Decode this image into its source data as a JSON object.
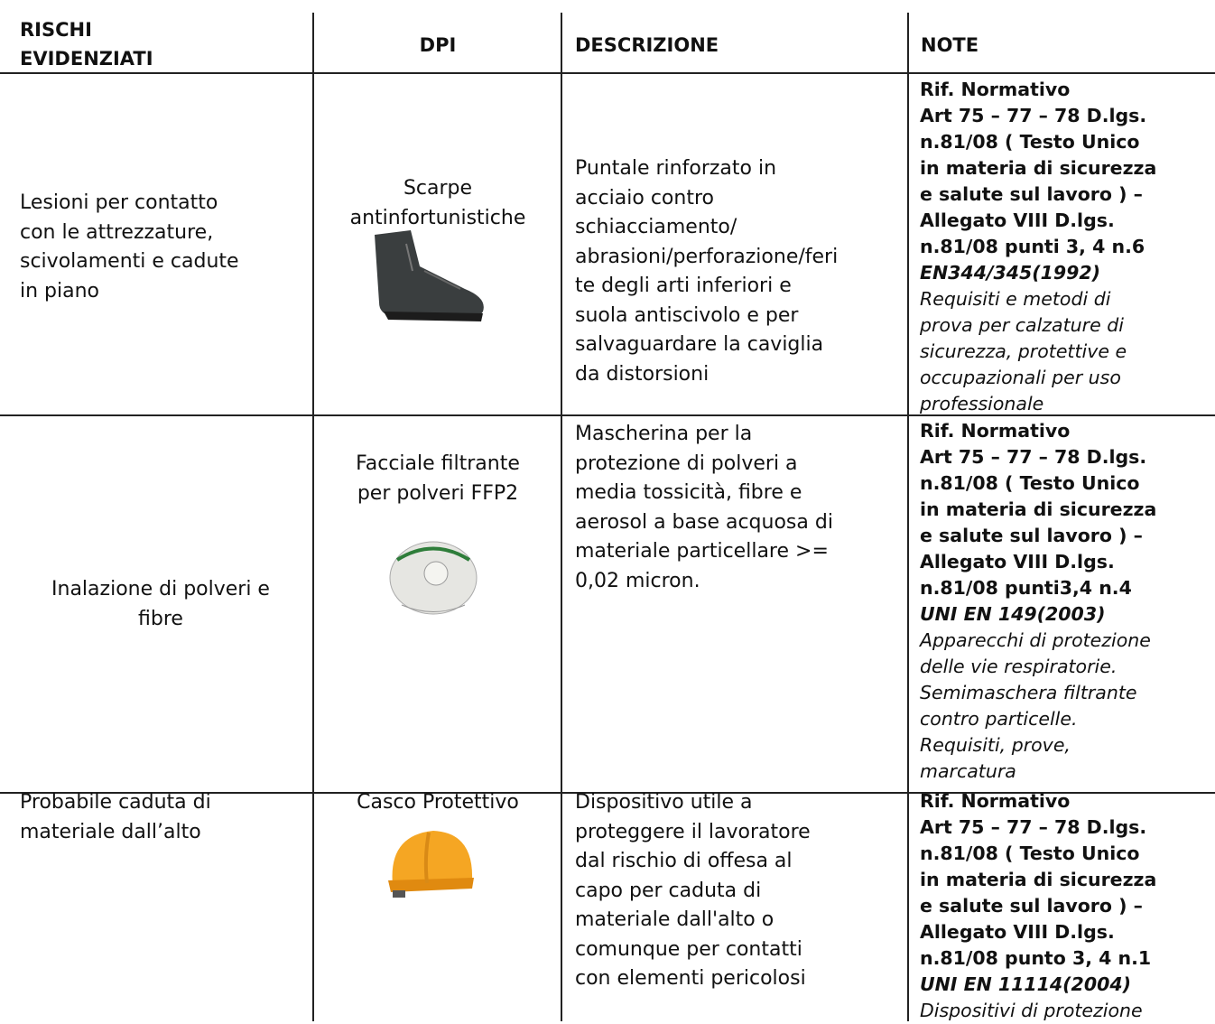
{
  "table": {
    "header": {
      "risks": [
        "RISCHI",
        "EVIDENZIATI"
      ],
      "dpi": "DPI",
      "description": "DESCRIZIONE",
      "notes": "NOTE"
    },
    "rows": [
      {
        "risk": [
          "Lesioni per contatto",
          "con le attrezzature,",
          "scivolamenti e cadute",
          "in piano"
        ],
        "dpi": [
          "Scarpe",
          "antinfortunistiche"
        ],
        "description": [
          "Puntale rinforzato in",
          "acciaio contro",
          "schiacciamento/",
          "abrasioni/perforazione/feri",
          "te degli arti inferiori e",
          "suola antiscivolo e per",
          "salvaguardare la caviglia",
          "da distorsioni"
        ],
        "notes": {
          "reference": [
            "Rif. Normativo",
            "Art 75 – 77 – 78 D.lgs.",
            "n.81/08 ( Testo Unico",
            "in materia di sicurezza",
            "e salute sul lavoro ) –",
            "Allegato VIII  D.lgs.",
            "n.81/08 punti 3, 4 n.6"
          ],
          "standard": [
            "EN344/345(1992)"
          ],
          "standard_description": [
            "Requisiti e metodi di",
            "prova per calzature di",
            "sicurezza, protettive e",
            "occupazionali per uso",
            "professionale"
          ]
        }
      },
      {
        "risk": [
          "Inalazione di polveri e",
          "fibre"
        ],
        "dpi": [
          "Facciale filtrante",
          "per polveri FFP2"
        ],
        "description": [
          "Mascherina per la",
          "protezione di polveri a",
          "media tossicità, fibre e",
          "aerosol a base acquosa di",
          "materiale particellare >=",
          "0,02 micron."
        ],
        "notes": {
          "reference": [
            "Rif. Normativo",
            "Art 75 – 77 – 78 D.lgs.",
            "n.81/08 ( Testo Unico",
            "in materia di sicurezza",
            "e salute sul lavoro ) –",
            "Allegato VIII  D.lgs.",
            "n.81/08 punti3,4 n.4"
          ],
          "standard": [
            "UNI EN 149(2003)"
          ],
          "standard_description": [
            "Apparecchi di protezione",
            "delle vie respiratorie.",
            "Semimaschera filtrante",
            "contro particelle.",
            "Requisiti, prove,",
            "marcatura"
          ]
        }
      },
      {
        "risk": [
          "Probabile caduta di",
          "materiale dall’alto"
        ],
        "dpi": [
          "Casco Protettivo"
        ],
        "description": [
          "Dispositivo utile a",
          "proteggere il lavoratore",
          "dal rischio di offesa al",
          "capo per caduta di",
          "materiale dall'alto o",
          "comunque per contatti",
          "con elementi pericolosi"
        ],
        "notes": {
          "reference": [
            "Rif. Normativo",
            "Art 75 – 77 – 78 D.lgs.",
            "n.81/08 ( Testo Unico",
            "in materia di sicurezza",
            "e salute sul lavoro ) –",
            "Allegato VIII  D.lgs.",
            "n.81/08 punto 3, 4 n.1"
          ],
          "standard": [
            "UNI EN 11114(2004)"
          ],
          "standard_description": [
            "Dispositivi di protezione"
          ]
        }
      }
    ]
  }
}
